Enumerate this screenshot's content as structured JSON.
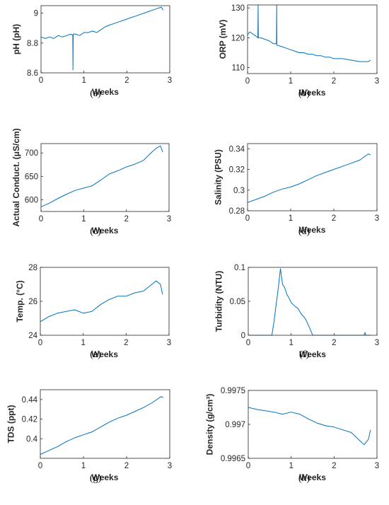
{
  "chart_data": [
    {
      "id": "a",
      "type": "line",
      "panel_label": "(a)",
      "xlabel": "Weeks",
      "ylabel": "pH (pH)",
      "xlim": [
        0,
        3
      ],
      "ylim": [
        8.6,
        9.05
      ],
      "xticks": [
        0,
        1,
        2,
        3
      ],
      "yticks": [
        8.6,
        8.8,
        9
      ],
      "xtick_labels": [
        "0",
        "1",
        "2",
        "3"
      ],
      "ytick_labels": [
        "8.6",
        "8.8",
        "9"
      ],
      "color": "#0072BD",
      "series": [
        {
          "x": [
            0,
            0.1,
            0.2,
            0.3,
            0.4,
            0.5,
            0.6,
            0.7,
            0.74,
            0.745,
            0.75,
            0.8,
            0.9,
            1.0,
            1.1,
            1.2,
            1.3,
            1.4,
            1.5,
            1.6,
            1.7,
            1.8,
            1.9,
            2.0,
            2.1,
            2.2,
            2.3,
            2.4,
            2.5,
            2.6,
            2.7,
            2.8,
            2.85
          ],
          "y": [
            8.84,
            8.83,
            8.84,
            8.83,
            8.85,
            8.84,
            8.85,
            8.86,
            8.85,
            8.62,
            8.86,
            8.86,
            8.85,
            8.87,
            8.87,
            8.88,
            8.87,
            8.89,
            8.91,
            8.92,
            8.93,
            8.94,
            8.95,
            8.96,
            8.97,
            8.98,
            8.99,
            9.0,
            9.01,
            9.02,
            9.03,
            9.04,
            9.02
          ]
        }
      ]
    },
    {
      "id": "b",
      "type": "line",
      "panel_label": "(b)",
      "xlabel": "Weeks",
      "ylabel": "ORP (mV)",
      "xlim": [
        0,
        3
      ],
      "ylim": [
        108,
        131
      ],
      "xticks": [
        0,
        1,
        2,
        3
      ],
      "yticks": [
        110,
        120,
        130
      ],
      "xtick_labels": [
        "0",
        "1",
        "2",
        "3"
      ],
      "ytick_labels": [
        "110",
        "120",
        "130"
      ],
      "color": "#0072BD",
      "series": [
        {
          "x": [
            0,
            0.05,
            0.1,
            0.15,
            0.2,
            0.24,
            0.245,
            0.25,
            0.3,
            0.4,
            0.5,
            0.6,
            0.67,
            0.675,
            0.68,
            0.8,
            0.9,
            1.0,
            1.1,
            1.2,
            1.3,
            1.4,
            1.5,
            1.6,
            1.7,
            1.8,
            1.9,
            2.0,
            2.2,
            2.4,
            2.6,
            2.8,
            2.85
          ],
          "y": [
            121,
            122,
            121.5,
            121,
            120.5,
            120,
            131,
            120,
            120,
            119.5,
            119,
            118,
            118,
            131,
            117.5,
            117,
            116.5,
            116,
            115.5,
            115,
            115,
            114.5,
            114.5,
            114,
            114,
            113.5,
            113.5,
            113,
            113,
            112.5,
            112,
            112,
            112.5
          ]
        }
      ]
    },
    {
      "id": "c",
      "type": "line",
      "panel_label": "(c)",
      "xlabel": "Weeks",
      "ylabel": "Actual Conduct. (μS/cm)",
      "xlim": [
        0,
        3
      ],
      "ylim": [
        575,
        720
      ],
      "xticks": [
        0,
        1,
        2,
        3
      ],
      "yticks": [
        600,
        650,
        700
      ],
      "xtick_labels": [
        "0",
        "1",
        "2",
        "3"
      ],
      "ytick_labels": [
        "600",
        "650",
        "700"
      ],
      "color": "#0072BD",
      "series": [
        {
          "x": [
            0,
            0.2,
            0.4,
            0.6,
            0.8,
            1.0,
            1.2,
            1.4,
            1.6,
            1.8,
            2.0,
            2.2,
            2.4,
            2.6,
            2.7,
            2.8,
            2.85
          ],
          "y": [
            585,
            593,
            603,
            612,
            620,
            625,
            630,
            642,
            655,
            662,
            670,
            676,
            684,
            702,
            710,
            715,
            702
          ]
        }
      ]
    },
    {
      "id": "d",
      "type": "line",
      "panel_label": "(d)",
      "xlabel": "Weeks",
      "ylabel": "Salinity (PSU)",
      "xlim": [
        0,
        3
      ],
      "ylim": [
        0.28,
        0.345
      ],
      "xticks": [
        0,
        1,
        2,
        3
      ],
      "yticks": [
        0.28,
        0.3,
        0.32,
        0.34
      ],
      "xtick_labels": [
        "0",
        "1",
        "2",
        "3"
      ],
      "ytick_labels": [
        "0.28",
        "0.3",
        "0.32",
        "0.34"
      ],
      "color": "#0072BD",
      "series": [
        {
          "x": [
            0,
            0.2,
            0.4,
            0.6,
            0.8,
            1.0,
            1.2,
            1.4,
            1.6,
            1.8,
            2.0,
            2.2,
            2.4,
            2.6,
            2.8,
            2.85
          ],
          "y": [
            0.288,
            0.291,
            0.294,
            0.298,
            0.301,
            0.303,
            0.306,
            0.31,
            0.314,
            0.317,
            0.32,
            0.323,
            0.326,
            0.329,
            0.335,
            0.334
          ]
        }
      ]
    },
    {
      "id": "e",
      "type": "line",
      "panel_label": "(e)",
      "xlabel": "Weeks",
      "ylabel": "Temp. (°C)",
      "xlim": [
        0,
        3
      ],
      "ylim": [
        24,
        28
      ],
      "xticks": [
        0,
        1,
        2,
        3
      ],
      "yticks": [
        24,
        26,
        28
      ],
      "xtick_labels": [
        "0",
        "1",
        "2",
        "3"
      ],
      "ytick_labels": [
        "24",
        "26",
        "28"
      ],
      "color": "#0072BD",
      "series": [
        {
          "x": [
            0,
            0.2,
            0.4,
            0.6,
            0.8,
            1.0,
            1.2,
            1.4,
            1.6,
            1.8,
            2.0,
            2.2,
            2.4,
            2.6,
            2.7,
            2.8,
            2.85
          ],
          "y": [
            24.8,
            25.1,
            25.3,
            25.4,
            25.5,
            25.3,
            25.4,
            25.8,
            26.1,
            26.3,
            26.3,
            26.5,
            26.6,
            27.0,
            27.2,
            27.0,
            26.4
          ]
        }
      ]
    },
    {
      "id": "f",
      "type": "line",
      "panel_label": "(f)",
      "xlabel": "Weeks",
      "ylabel": "Turbidity (NTU)",
      "xlim": [
        0,
        3
      ],
      "ylim": [
        0,
        0.1
      ],
      "xticks": [
        0,
        1,
        2,
        3
      ],
      "yticks": [
        0,
        0.05,
        0.1
      ],
      "xtick_labels": [
        "0",
        "1",
        "2",
        "3"
      ],
      "ytick_labels": [
        "0",
        "0.05",
        "0.1"
      ],
      "color": "#0072BD",
      "series": [
        {
          "x": [
            0,
            0.55,
            0.6,
            0.65,
            0.7,
            0.75,
            0.8,
            0.85,
            0.9,
            0.95,
            1.0,
            1.05,
            1.1,
            1.15,
            1.2,
            1.25,
            1.3,
            1.35,
            1.4,
            1.45,
            1.5,
            2.7,
            2.72,
            2.74,
            2.85
          ],
          "y": [
            0,
            0,
            0.02,
            0.045,
            0.07,
            0.098,
            0.075,
            0.07,
            0.06,
            0.055,
            0.048,
            0.045,
            0.042,
            0.04,
            0.035,
            0.03,
            0.027,
            0.022,
            0.015,
            0.008,
            0,
            0,
            0.004,
            0,
            0
          ]
        }
      ]
    },
    {
      "id": "g",
      "type": "line",
      "panel_label": "(g)",
      "xlabel": "Weeks",
      "ylabel": "TDS (ppt)",
      "xlim": [
        0,
        3
      ],
      "ylim": [
        0.38,
        0.45
      ],
      "xticks": [
        0,
        1,
        2,
        3
      ],
      "yticks": [
        0.4,
        0.42,
        0.44
      ],
      "xtick_labels": [
        "0",
        "1",
        "2",
        "3"
      ],
      "ytick_labels": [
        "0.4",
        "0.42",
        "0.44"
      ],
      "color": "#0072BD",
      "series": [
        {
          "x": [
            0,
            0.2,
            0.4,
            0.6,
            0.8,
            1.0,
            1.2,
            1.4,
            1.6,
            1.8,
            2.0,
            2.2,
            2.4,
            2.6,
            2.8,
            2.85
          ],
          "y": [
            0.384,
            0.388,
            0.392,
            0.397,
            0.401,
            0.404,
            0.407,
            0.412,
            0.417,
            0.421,
            0.424,
            0.428,
            0.432,
            0.437,
            0.443,
            0.442
          ]
        }
      ]
    },
    {
      "id": "h",
      "type": "line",
      "panel_label": "(h)",
      "xlabel": "Weeks",
      "ylabel": "Density (g/cm³)",
      "xlim": [
        0,
        3
      ],
      "ylim": [
        0.9965,
        0.9975
      ],
      "xticks": [
        0,
        1,
        2,
        3
      ],
      "yticks": [
        0.9965,
        0.997,
        0.9975
      ],
      "xtick_labels": [
        "0",
        "1",
        "2",
        "3"
      ],
      "ytick_labels": [
        "0.9965",
        "0.997",
        "0.9975"
      ],
      "color": "#0072BD",
      "series": [
        {
          "x": [
            0,
            0.2,
            0.4,
            0.6,
            0.8,
            1.0,
            1.2,
            1.4,
            1.6,
            1.8,
            2.0,
            2.2,
            2.4,
            2.6,
            2.7,
            2.8,
            2.85
          ],
          "y": [
            0.99725,
            0.99722,
            0.9972,
            0.99718,
            0.99715,
            0.99718,
            0.99715,
            0.99708,
            0.99702,
            0.99698,
            0.99696,
            0.99692,
            0.99688,
            0.99676,
            0.9967,
            0.99678,
            0.99692
          ]
        }
      ]
    }
  ]
}
